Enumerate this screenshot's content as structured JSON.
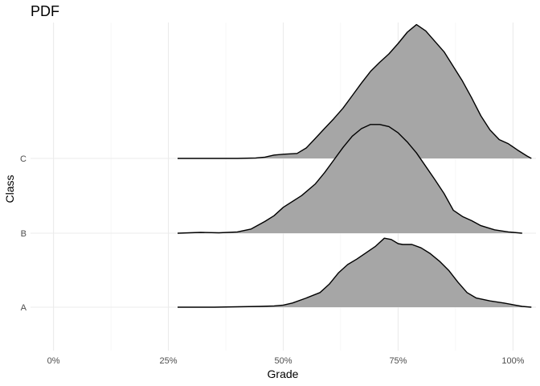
{
  "chart_data": {
    "type": "ridgeline",
    "title": "PDF",
    "xlabel": "Grade",
    "ylabel": "Class",
    "x_ticks": [
      0,
      0.25,
      0.5,
      0.75,
      1.0
    ],
    "x_tick_labels": [
      "0%",
      "25%",
      "50%",
      "75%",
      "100%"
    ],
    "xlim": [
      -0.05,
      1.05
    ],
    "grid": true,
    "legend": "none",
    "fill_color": "#a6a6a6",
    "line_color": "#000000",
    "categories": [
      "A",
      "B",
      "C"
    ],
    "series": [
      {
        "name": "A",
        "points": [
          [
            0.27,
            0.0
          ],
          [
            0.35,
            0.0
          ],
          [
            0.4,
            0.01
          ],
          [
            0.45,
            0.02
          ],
          [
            0.48,
            0.03
          ],
          [
            0.5,
            0.05
          ],
          [
            0.52,
            0.1
          ],
          [
            0.55,
            0.22
          ],
          [
            0.58,
            0.35
          ],
          [
            0.6,
            0.55
          ],
          [
            0.62,
            0.82
          ],
          [
            0.64,
            1.02
          ],
          [
            0.66,
            1.15
          ],
          [
            0.68,
            1.3
          ],
          [
            0.7,
            1.45
          ],
          [
            0.72,
            1.65
          ],
          [
            0.735,
            1.62
          ],
          [
            0.75,
            1.52
          ],
          [
            0.76,
            1.5
          ],
          [
            0.78,
            1.5
          ],
          [
            0.8,
            1.42
          ],
          [
            0.82,
            1.28
          ],
          [
            0.84,
            1.1
          ],
          [
            0.86,
            0.88
          ],
          [
            0.88,
            0.6
          ],
          [
            0.9,
            0.35
          ],
          [
            0.92,
            0.22
          ],
          [
            0.95,
            0.15
          ],
          [
            0.98,
            0.1
          ],
          [
            1.0,
            0.06
          ],
          [
            1.02,
            0.02
          ],
          [
            1.04,
            0.0
          ]
        ]
      },
      {
        "name": "B",
        "points": [
          [
            0.27,
            0.0
          ],
          [
            0.32,
            0.02
          ],
          [
            0.36,
            0.01
          ],
          [
            0.4,
            0.03
          ],
          [
            0.43,
            0.1
          ],
          [
            0.46,
            0.28
          ],
          [
            0.48,
            0.42
          ],
          [
            0.5,
            0.62
          ],
          [
            0.54,
            0.9
          ],
          [
            0.57,
            1.18
          ],
          [
            0.59,
            1.45
          ],
          [
            0.61,
            1.75
          ],
          [
            0.63,
            2.05
          ],
          [
            0.65,
            2.32
          ],
          [
            0.67,
            2.5
          ],
          [
            0.69,
            2.6
          ],
          [
            0.71,
            2.6
          ],
          [
            0.73,
            2.55
          ],
          [
            0.75,
            2.4
          ],
          [
            0.77,
            2.18
          ],
          [
            0.79,
            1.92
          ],
          [
            0.81,
            1.6
          ],
          [
            0.83,
            1.28
          ],
          [
            0.85,
            0.95
          ],
          [
            0.87,
            0.55
          ],
          [
            0.89,
            0.4
          ],
          [
            0.91,
            0.3
          ],
          [
            0.93,
            0.18
          ],
          [
            0.96,
            0.08
          ],
          [
            0.99,
            0.03
          ],
          [
            1.02,
            0.0
          ]
        ]
      },
      {
        "name": "C",
        "points": [
          [
            0.27,
            0.0
          ],
          [
            0.35,
            0.0
          ],
          [
            0.4,
            0.0
          ],
          [
            0.44,
            0.01
          ],
          [
            0.46,
            0.03
          ],
          [
            0.48,
            0.08
          ],
          [
            0.5,
            0.1
          ],
          [
            0.53,
            0.12
          ],
          [
            0.55,
            0.25
          ],
          [
            0.57,
            0.48
          ],
          [
            0.59,
            0.72
          ],
          [
            0.61,
            0.95
          ],
          [
            0.63,
            1.2
          ],
          [
            0.65,
            1.5
          ],
          [
            0.67,
            1.8
          ],
          [
            0.69,
            2.08
          ],
          [
            0.71,
            2.3
          ],
          [
            0.73,
            2.5
          ],
          [
            0.75,
            2.75
          ],
          [
            0.77,
            3.02
          ],
          [
            0.79,
            3.2
          ],
          [
            0.81,
            3.05
          ],
          [
            0.83,
            2.8
          ],
          [
            0.85,
            2.55
          ],
          [
            0.87,
            2.2
          ],
          [
            0.89,
            1.85
          ],
          [
            0.91,
            1.45
          ],
          [
            0.93,
            1.02
          ],
          [
            0.95,
            0.68
          ],
          [
            0.97,
            0.45
          ],
          [
            0.99,
            0.35
          ],
          [
            1.01,
            0.2
          ],
          [
            1.03,
            0.06
          ],
          [
            1.04,
            0.0
          ]
        ]
      }
    ]
  }
}
